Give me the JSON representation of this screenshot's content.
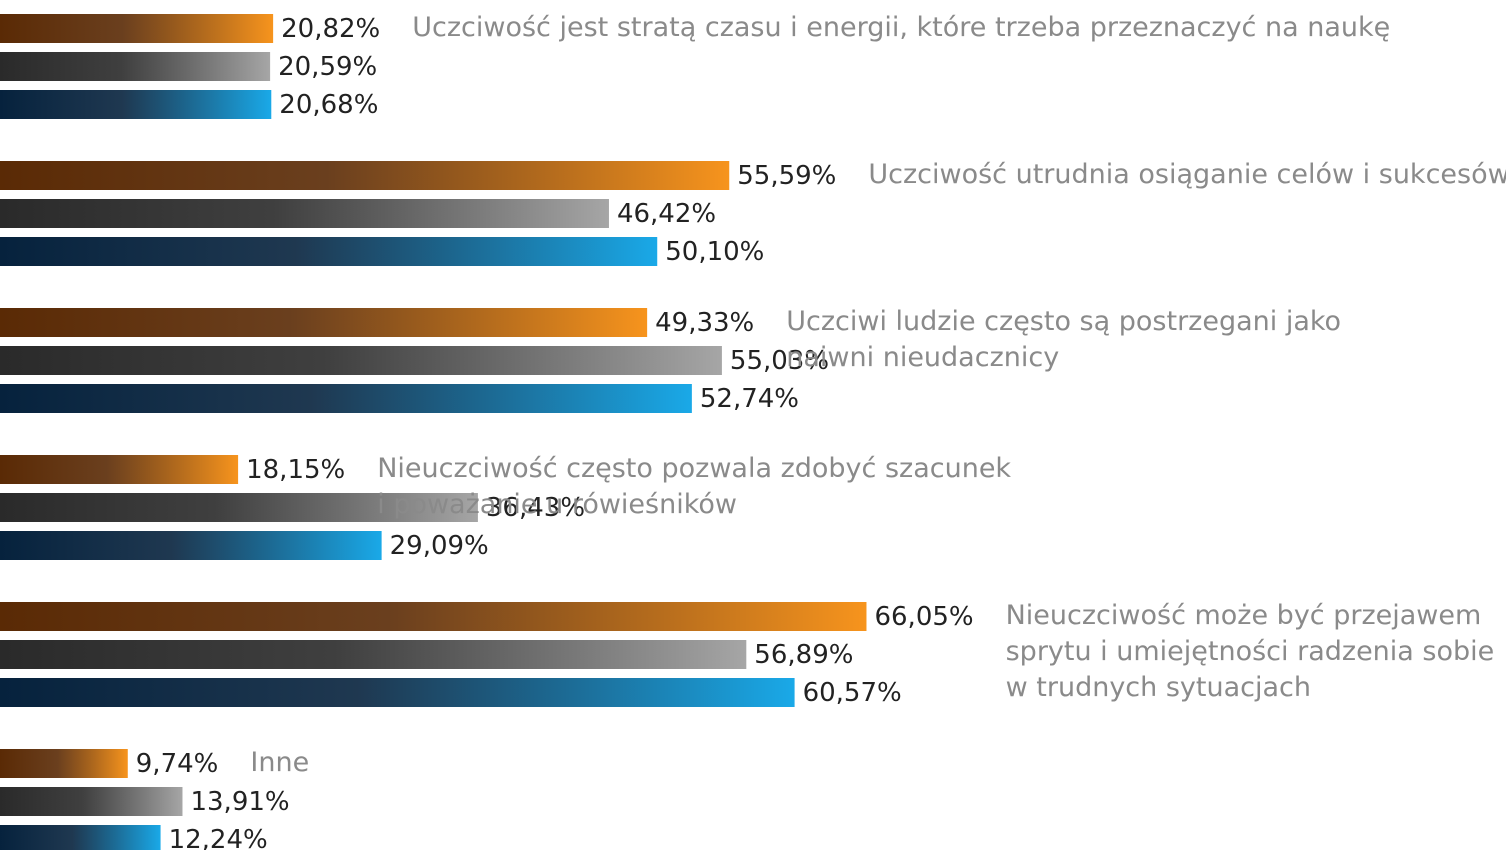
{
  "chart_data": {
    "type": "bar",
    "orientation": "horizontal",
    "categories": [
      [
        "Uczciwość jest stratą czasu i energii, które trzeba przeznaczyć na naukę"
      ],
      [
        "Uczciwość utrudnia osiąganie celów i sukcesów"
      ],
      [
        "Uczciwi ludzie często są postrzegani jako",
        "naiwni nieudacznicy"
      ],
      [
        "Nieuczciwość często pozwala zdobyć szacunek",
        "i poważanie u rówieśników"
      ],
      [
        "Nieuczciwość może być przejawem",
        "sprytu i umiejętności radzenia sobie",
        "w trudnych sytuacjach"
      ],
      [
        "Inne"
      ]
    ],
    "series": [
      {
        "color": "#f7941d",
        "values": [
          20.82,
          55.59,
          49.33,
          18.15,
          66.05,
          9.74
        ],
        "value_labels": [
          "20,82%",
          "55,59%",
          "49,33%",
          "18,15%",
          "66,05%",
          "9,74%"
        ]
      },
      {
        "color": "#a6a6a6",
        "values": [
          20.59,
          46.42,
          55.03,
          36.43,
          56.89,
          13.91
        ],
        "value_labels": [
          "20,59%",
          "46,42%",
          "55,03%",
          "36,43%",
          "56,89%",
          "13,91%"
        ]
      },
      {
        "color": "#1aa9e8",
        "values": [
          20.68,
          50.1,
          52.74,
          29.09,
          60.57,
          12.24
        ],
        "value_labels": [
          "20,68%",
          "50,10%",
          "52,74%",
          "29,09%",
          "60,57%",
          "12,24%"
        ]
      }
    ],
    "xlim": [
      0,
      114.8
    ]
  }
}
